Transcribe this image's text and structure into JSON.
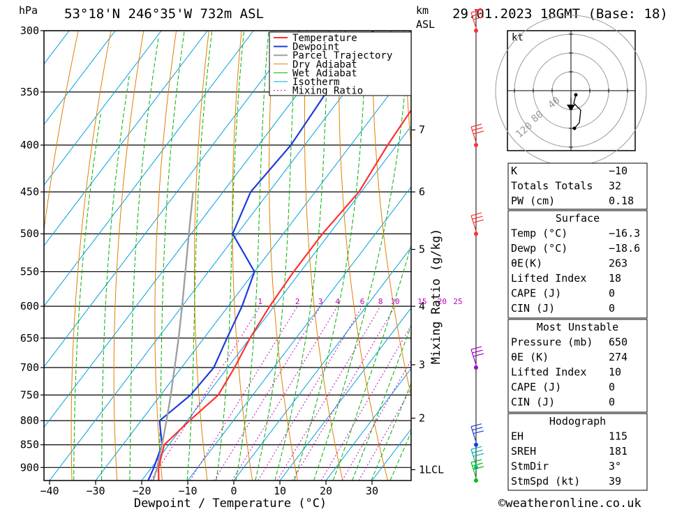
{
  "header": {
    "location": "53°18'N  246°35'W  732m  ASL",
    "datetime": "29.01.2023  18GMT  (Base: 18)",
    "left_unit": "hPa",
    "right_unit_1": "km",
    "right_unit_2": "ASL"
  },
  "footer": {
    "copyright": "©weatheronline.co.uk"
  },
  "colors": {
    "temperature": "#ff3030",
    "dewpoint": "#1a3adf",
    "parcel": "#a0a0a0",
    "dry_adiabat": "#e08000",
    "wet_adiabat": "#00b000",
    "isotherm": "#00a0e0",
    "mixing_ratio": "#c000c0"
  },
  "chart_data": {
    "type": "line",
    "title": "",
    "xlabel": "Dewpoint / Temperature (°C)",
    "ylabel": "hPa",
    "right_label": "Mixing Ratio (g/kg)",
    "xlim": [
      -42,
      38
    ],
    "ylim": [
      930,
      300
    ],
    "skew": "skew-T log-P",
    "pressure_ticks": [
      300,
      350,
      400,
      450,
      500,
      550,
      600,
      650,
      700,
      750,
      800,
      850,
      900
    ],
    "pressure_tick_labels": [
      "300",
      "350",
      "400",
      "450",
      "500",
      "550",
      "600",
      "650",
      "700",
      "750",
      "800",
      "850",
      "900"
    ],
    "temp_ticks": [
      -40,
      -30,
      -20,
      -10,
      0,
      10,
      20,
      30
    ],
    "temp_tick_labels": [
      "−40",
      "−30",
      "−20",
      "−10",
      "0",
      "10",
      "20",
      "30"
    ],
    "km_ticks": [
      {
        "label": "7",
        "p": 385
      },
      {
        "label": "6",
        "p": 450
      },
      {
        "label": "5",
        "p": 520
      },
      {
        "label": "4",
        "p": 600
      },
      {
        "label": "3",
        "p": 695
      },
      {
        "label": "2",
        "p": 795
      },
      {
        "label": "1LCL",
        "p": 905
      }
    ],
    "mixing_ratio_labels": [
      "1",
      "2",
      "3",
      "4",
      "6",
      "8",
      "10",
      "15",
      "20",
      "25"
    ],
    "mixing_ratio_values": [
      1,
      2,
      3,
      4,
      6,
      8,
      10,
      15,
      20,
      25
    ],
    "legend": [
      "Temperature",
      "Dewpoint",
      "Parcel Trajectory",
      "Dry Adiabat",
      "Wet Adiabat",
      "Isotherm",
      "Mixing Ratio"
    ],
    "legend_position": "top-right",
    "series": [
      {
        "name": "Temperature",
        "p": [
          930,
          900,
          850,
          800,
          750,
          700,
          650,
          600,
          550,
          500,
          450,
          400,
          350,
          300
        ],
        "t": [
          -16.3,
          -18.5,
          -21,
          -19.5,
          -17.5,
          -18.5,
          -20,
          -21,
          -21.5,
          -21.5,
          -20.5,
          -22,
          -23,
          -22
        ]
      },
      {
        "name": "Dewpoint",
        "p": [
          930,
          900,
          850,
          800,
          750,
          700,
          650,
          600,
          550,
          500,
          450,
          400,
          350,
          300
        ],
        "t": [
          -18.6,
          -19.5,
          -21.5,
          -26,
          -23.5,
          -23,
          -25,
          -27,
          -30,
          -41,
          -44,
          -43,
          -44,
          -44
        ]
      },
      {
        "name": "Parcel Trajectory",
        "p": [
          930,
          900,
          850,
          800,
          750,
          700,
          650,
          600,
          550,
          500,
          450
        ],
        "t": [
          -17.5,
          -18.8,
          -21.5,
          -24.5,
          -27.8,
          -31.5,
          -35.5,
          -40,
          -45,
          -50.5,
          -56.5
        ]
      }
    ]
  },
  "hodograph": {
    "unit": "kt",
    "ring_labels": [
      "40",
      "80",
      "120"
    ]
  },
  "tables": {
    "indices": [
      {
        "label": "K",
        "value": "−10"
      },
      {
        "label": "Totals Totals",
        "value": "32"
      },
      {
        "label": "PW (cm)",
        "value": "0.18"
      }
    ],
    "surface": {
      "title": "Surface",
      "rows": [
        {
          "label": "Temp (°C)",
          "value": "−16.3"
        },
        {
          "label": "Dewp (°C)",
          "value": "−18.6"
        },
        {
          "label": "θE(K)",
          "value": "263"
        },
        {
          "label": "Lifted Index",
          "value": "18"
        },
        {
          "label": "CAPE (J)",
          "value": "0"
        },
        {
          "label": "CIN (J)",
          "value": "0"
        }
      ]
    },
    "most_unstable": {
      "title": "Most Unstable",
      "rows": [
        {
          "label": "Pressure (mb)",
          "value": "650"
        },
        {
          "label": "θE (K)",
          "value": "274"
        },
        {
          "label": "Lifted Index",
          "value": "10"
        },
        {
          "label": "CAPE (J)",
          "value": "0"
        },
        {
          "label": "CIN (J)",
          "value": "0"
        }
      ]
    },
    "hodograph": {
      "title": "Hodograph",
      "rows": [
        {
          "label": "EH",
          "value": "115"
        },
        {
          "label": "SREH",
          "value": "181"
        },
        {
          "label": "StmDir",
          "value": "3°"
        },
        {
          "label": "StmSpd (kt)",
          "value": "39"
        }
      ]
    }
  }
}
